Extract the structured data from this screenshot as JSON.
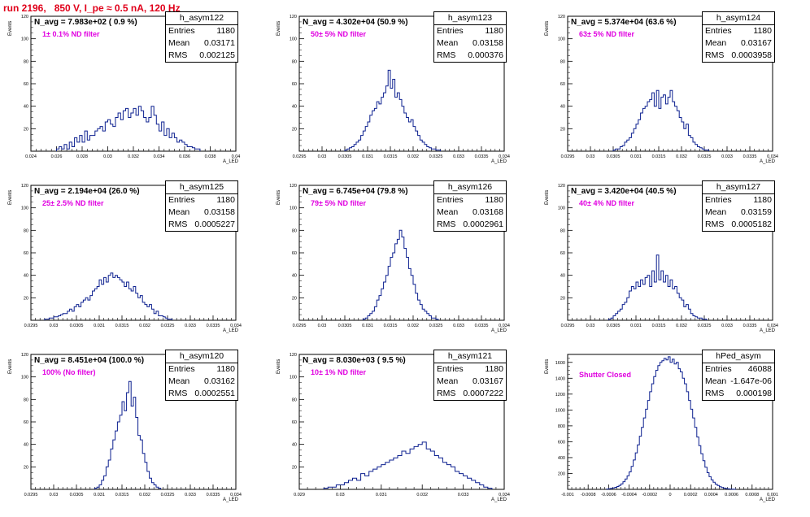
{
  "run_title": "run 2196,   850 V, I_pe ≈ 0.5 nA, 120 Hz",
  "chart_data": [
    {
      "type": "histogram",
      "hist_name": "h_asym122",
      "navg_label": "N_avg = 7.983e+02 ( 0.9 %)",
      "filter_label": "1± 0.1% ND filter",
      "stats": {
        "Entries": "1180",
        "Mean": "0.03171",
        "RMS": "0.002125"
      },
      "xlim": [
        0.024,
        0.04
      ],
      "ylim": [
        0,
        120
      ],
      "xticks": [
        "0.024",
        "0.026",
        "0.028",
        "0.03",
        "0.032",
        "0.034",
        "0.036",
        "0.038",
        "0.04"
      ],
      "yticks": [
        "20",
        "40",
        "60",
        "80",
        "100",
        "120"
      ],
      "xlabel": "A_LED",
      "ylabel": "Events",
      "bins_x": [
        0.026,
        0.0262,
        0.0264,
        0.0266,
        0.0268,
        0.027,
        0.0272,
        0.0274,
        0.0276,
        0.0278,
        0.028,
        0.0282,
        0.0284,
        0.0286,
        0.0288,
        0.029,
        0.0292,
        0.0294,
        0.0296,
        0.0298,
        0.03,
        0.0302,
        0.0304,
        0.0306,
        0.0308,
        0.031,
        0.0312,
        0.0314,
        0.0316,
        0.0318,
        0.032,
        0.0322,
        0.0324,
        0.0326,
        0.0328,
        0.033,
        0.0332,
        0.0334,
        0.0336,
        0.0338,
        0.034,
        0.0342,
        0.0344,
        0.0346,
        0.0348,
        0.035,
        0.0352,
        0.0354,
        0.0356,
        0.0358,
        0.036,
        0.0362,
        0.0364,
        0.0366,
        0.0368,
        0.037
      ],
      "values": [
        2,
        4,
        2,
        6,
        2,
        8,
        4,
        12,
        8,
        14,
        8,
        18,
        10,
        14,
        14,
        18,
        20,
        22,
        18,
        26,
        28,
        24,
        22,
        30,
        34,
        28,
        36,
        38,
        30,
        34,
        38,
        32,
        40,
        36,
        30,
        26,
        30,
        40,
        32,
        24,
        18,
        26,
        14,
        20,
        12,
        16,
        12,
        8,
        10,
        8,
        6,
        4,
        4,
        3,
        2,
        2
      ]
    },
    {
      "type": "histogram",
      "hist_name": "h_asym123",
      "navg_label": "N_avg = 4.302e+04 (50.9 %)",
      "filter_label": "50± 5% ND filter",
      "stats": {
        "Entries": "1180",
        "Mean": "0.03158",
        "RMS": "0.000376"
      },
      "xlim": [
        0.0295,
        0.034
      ],
      "ylim": [
        0,
        120
      ],
      "xticks": [
        "0.0295",
        "0.03",
        "0.0305",
        "0.031",
        "0.0315",
        "0.032",
        "0.0325",
        "0.033",
        "0.0335",
        "0.034"
      ],
      "yticks": [
        "20",
        "40",
        "60",
        "80",
        "100",
        "120"
      ],
      "xlabel": "A_LED",
      "ylabel": "Events",
      "bins_x": [
        0.0305,
        0.03055,
        0.0306,
        0.03065,
        0.0307,
        0.03075,
        0.0308,
        0.03085,
        0.0309,
        0.03095,
        0.031,
        0.03105,
        0.0311,
        0.03115,
        0.0312,
        0.03125,
        0.0313,
        0.03135,
        0.0314,
        0.03145,
        0.0315,
        0.03155,
        0.0316,
        0.03165,
        0.0317,
        0.03175,
        0.0318,
        0.03185,
        0.0319,
        0.03195,
        0.032,
        0.03205,
        0.0321,
        0.03215,
        0.0322,
        0.03225,
        0.0323,
        0.03235,
        0.0324,
        0.03245,
        0.0325,
        0.03255
      ],
      "values": [
        1,
        2,
        3,
        4,
        6,
        8,
        10,
        14,
        18,
        22,
        26,
        32,
        36,
        38,
        44,
        42,
        48,
        52,
        58,
        72,
        56,
        64,
        48,
        52,
        46,
        40,
        34,
        30,
        26,
        28,
        22,
        18,
        14,
        10,
        8,
        6,
        4,
        3,
        2,
        2,
        1,
        1
      ]
    },
    {
      "type": "histogram",
      "hist_name": "h_asym124",
      "navg_label": "N_avg = 5.374e+04 (63.6 %)",
      "filter_label": "63± 5% ND filter",
      "stats": {
        "Entries": "1180",
        "Mean": "0.03167",
        "RMS": "0.0003958"
      },
      "xlim": [
        0.0295,
        0.034
      ],
      "ylim": [
        0,
        120
      ],
      "xticks": [
        "0.0295",
        "0.03",
        "0.0305",
        "0.031",
        "0.0315",
        "0.032",
        "0.0325",
        "0.033",
        "0.0335",
        "0.034"
      ],
      "yticks": [
        "20",
        "40",
        "60",
        "80",
        "100",
        "120"
      ],
      "xlabel": "A_LED",
      "ylabel": "Events",
      "bins_x": [
        0.0305,
        0.03055,
        0.0306,
        0.03065,
        0.0307,
        0.03075,
        0.0308,
        0.03085,
        0.0309,
        0.03095,
        0.031,
        0.03105,
        0.0311,
        0.03115,
        0.0312,
        0.03125,
        0.0313,
        0.03135,
        0.0314,
        0.03145,
        0.0315,
        0.03155,
        0.0316,
        0.03165,
        0.0317,
        0.03175,
        0.0318,
        0.03185,
        0.0319,
        0.03195,
        0.032,
        0.03205,
        0.0321,
        0.03215,
        0.0322,
        0.03225,
        0.0323,
        0.03235,
        0.0324,
        0.03245,
        0.0325,
        0.03255
      ],
      "values": [
        1,
        2,
        2,
        4,
        5,
        8,
        10,
        12,
        16,
        20,
        24,
        28,
        34,
        38,
        40,
        44,
        46,
        52,
        40,
        54,
        38,
        48,
        50,
        42,
        48,
        54,
        44,
        40,
        36,
        30,
        26,
        20,
        24,
        14,
        12,
        8,
        6,
        4,
        3,
        2,
        1,
        1
      ]
    },
    {
      "type": "histogram",
      "hist_name": "h_asym125",
      "navg_label": "N_avg = 2.194e+04 (26.0 %)",
      "filter_label": "25± 2.5% ND filter",
      "stats": {
        "Entries": "1180",
        "Mean": "0.03158",
        "RMS": "0.0005227"
      },
      "xlim": [
        0.0295,
        0.034
      ],
      "ylim": [
        0,
        120
      ],
      "xticks": [
        "0.0295",
        "0.03",
        "0.0305",
        "0.031",
        "0.0315",
        "0.032",
        "0.0325",
        "0.033",
        "0.0335",
        "0.034"
      ],
      "yticks": [
        "20",
        "40",
        "60",
        "80",
        "100",
        "120"
      ],
      "xlabel": "A_LED",
      "ylabel": "Events",
      "bins_x": [
        0.0298,
        0.02985,
        0.0299,
        0.02995,
        0.03,
        0.03005,
        0.0301,
        0.03015,
        0.0302,
        0.03025,
        0.0303,
        0.03035,
        0.0304,
        0.03045,
        0.0305,
        0.03055,
        0.0306,
        0.03065,
        0.0307,
        0.03075,
        0.0308,
        0.03085,
        0.0309,
        0.03095,
        0.031,
        0.03105,
        0.0311,
        0.03115,
        0.0312,
        0.03125,
        0.0313,
        0.03135,
        0.0314,
        0.03145,
        0.0315,
        0.03155,
        0.0316,
        0.03165,
        0.0317,
        0.03175,
        0.0318,
        0.03185,
        0.0319,
        0.03195,
        0.032,
        0.03205,
        0.0321,
        0.03215,
        0.0322,
        0.03225,
        0.0323,
        0.03235,
        0.0324,
        0.03245,
        0.0325,
        0.03255
      ],
      "values": [
        1,
        1,
        2,
        2,
        3,
        3,
        4,
        5,
        6,
        6,
        8,
        10,
        8,
        12,
        14,
        12,
        16,
        18,
        20,
        18,
        22,
        26,
        28,
        30,
        36,
        32,
        38,
        34,
        40,
        42,
        38,
        40,
        38,
        36,
        34,
        30,
        34,
        28,
        26,
        30,
        24,
        20,
        22,
        16,
        14,
        12,
        14,
        10,
        6,
        8,
        4,
        4,
        3,
        2,
        1,
        1
      ]
    },
    {
      "type": "histogram",
      "hist_name": "h_asym126",
      "navg_label": "N_avg = 6.745e+04 (79.8 %)",
      "filter_label": "79± 5% ND filter",
      "stats": {
        "Entries": "1180",
        "Mean": "0.03168",
        "RMS": "0.0002961"
      },
      "xlim": [
        0.0295,
        0.034
      ],
      "ylim": [
        0,
        120
      ],
      "xticks": [
        "0.0295",
        "0.03",
        "0.0305",
        "0.031",
        "0.0315",
        "0.032",
        "0.0325",
        "0.033",
        "0.0335",
        "0.034"
      ],
      "yticks": [
        "20",
        "40",
        "60",
        "80",
        "100",
        "120"
      ],
      "xlabel": "A_LED",
      "ylabel": "Events",
      "bins_x": [
        0.0309,
        0.03095,
        0.031,
        0.03105,
        0.0311,
        0.03115,
        0.0312,
        0.03125,
        0.0313,
        0.03135,
        0.0314,
        0.03145,
        0.0315,
        0.03155,
        0.0316,
        0.03165,
        0.0317,
        0.03175,
        0.0318,
        0.03185,
        0.0319,
        0.03195,
        0.032,
        0.03205,
        0.0321,
        0.03215,
        0.0322,
        0.03225,
        0.0323,
        0.03235,
        0.0324,
        0.03245,
        0.0325
      ],
      "values": [
        1,
        2,
        4,
        6,
        8,
        12,
        18,
        22,
        28,
        34,
        40,
        48,
        56,
        60,
        68,
        72,
        80,
        74,
        64,
        56,
        46,
        40,
        32,
        24,
        18,
        14,
        10,
        8,
        6,
        4,
        2,
        2,
        1
      ]
    },
    {
      "type": "histogram",
      "hist_name": "h_asym127",
      "navg_label": "N_avg = 3.420e+04 (40.5 %)",
      "filter_label": "40± 4% ND filter",
      "stats": {
        "Entries": "1180",
        "Mean": "0.03159",
        "RMS": "0.0005182"
      },
      "xlim": [
        0.0295,
        0.034
      ],
      "ylim": [
        0,
        120
      ],
      "xticks": [
        "0.0295",
        "0.03",
        "0.0305",
        "0.031",
        "0.0315",
        "0.032",
        "0.0325",
        "0.033",
        "0.0335",
        "0.034"
      ],
      "yticks": [
        "20",
        "40",
        "60",
        "80",
        "100",
        "120"
      ],
      "xlabel": "A_LED",
      "ylabel": "Events",
      "bins_x": [
        0.0304,
        0.03045,
        0.0305,
        0.03055,
        0.0306,
        0.03065,
        0.0307,
        0.03075,
        0.0308,
        0.03085,
        0.0309,
        0.03095,
        0.031,
        0.03105,
        0.0311,
        0.03115,
        0.0312,
        0.03125,
        0.0313,
        0.03135,
        0.0314,
        0.03145,
        0.0315,
        0.03155,
        0.0316,
        0.03165,
        0.0317,
        0.03175,
        0.0318,
        0.03185,
        0.0319,
        0.03195,
        0.032,
        0.03205,
        0.0321,
        0.03215,
        0.0322,
        0.03225,
        0.0323,
        0.03235,
        0.0324,
        0.03245,
        0.0325
      ],
      "values": [
        1,
        2,
        4,
        6,
        8,
        10,
        14,
        16,
        20,
        26,
        30,
        28,
        34,
        30,
        36,
        32,
        38,
        40,
        30,
        44,
        34,
        58,
        36,
        44,
        34,
        40,
        30,
        36,
        28,
        30,
        24,
        20,
        18,
        12,
        14,
        10,
        6,
        4,
        3,
        2,
        2,
        1,
        1
      ]
    },
    {
      "type": "histogram",
      "hist_name": "h_asym120",
      "navg_label": "N_avg = 8.451e+04 (100.0 %)",
      "filter_label": "100% (No filter)",
      "stats": {
        "Entries": "1180",
        "Mean": "0.03162",
        "RMS": "0.0002551"
      },
      "xlim": [
        0.0295,
        0.034
      ],
      "ylim": [
        0,
        120
      ],
      "xticks": [
        "0.0295",
        "0.03",
        "0.0305",
        "0.031",
        "0.0315",
        "0.032",
        "0.0325",
        "0.033",
        "0.0335",
        "0.034"
      ],
      "yticks": [
        "20",
        "40",
        "60",
        "80",
        "100",
        "120"
      ],
      "xlabel": "A_LED",
      "ylabel": "Events",
      "bins_x": [
        0.0309,
        0.03095,
        0.031,
        0.03105,
        0.0311,
        0.03115,
        0.0312,
        0.03125,
        0.0313,
        0.03135,
        0.0314,
        0.03145,
        0.0315,
        0.03155,
        0.0316,
        0.03165,
        0.0317,
        0.03175,
        0.0318,
        0.03185,
        0.0319,
        0.03195,
        0.032,
        0.03205,
        0.0321,
        0.03215,
        0.0322,
        0.03225,
        0.0323
      ],
      "values": [
        1,
        2,
        4,
        8,
        12,
        20,
        26,
        36,
        44,
        52,
        60,
        66,
        78,
        70,
        86,
        96,
        74,
        82,
        64,
        48,
        44,
        32,
        24,
        16,
        10,
        6,
        4,
        2,
        1
      ]
    },
    {
      "type": "histogram",
      "hist_name": "h_asym121",
      "navg_label": "N_avg = 8.030e+03 ( 9.5 %)",
      "filter_label": "10± 1% ND filter",
      "stats": {
        "Entries": "1180",
        "Mean": "0.03167",
        "RMS": "0.0007222"
      },
      "xlim": [
        0.029,
        0.034
      ],
      "ylim": [
        0,
        120
      ],
      "xticks": [
        "0.029",
        "0.03",
        "0.031",
        "0.032",
        "0.033",
        "0.034"
      ],
      "yticks": [
        "20",
        "40",
        "60",
        "80",
        "100",
        "120"
      ],
      "xlabel": "A_LED",
      "ylabel": "Events",
      "bins_x": [
        0.0296,
        0.0297,
        0.0298,
        0.0299,
        0.03,
        0.0301,
        0.0302,
        0.0303,
        0.0304,
        0.0305,
        0.0306,
        0.0307,
        0.0308,
        0.0309,
        0.031,
        0.0311,
        0.0312,
        0.0313,
        0.0314,
        0.0315,
        0.0316,
        0.0317,
        0.0318,
        0.0319,
        0.032,
        0.0321,
        0.0322,
        0.0323,
        0.0324,
        0.0325,
        0.0326,
        0.0327,
        0.0328,
        0.0329,
        0.033,
        0.0331,
        0.0332,
        0.0333,
        0.0334,
        0.0335,
        0.0336
      ],
      "values": [
        1,
        2,
        2,
        4,
        4,
        6,
        8,
        10,
        8,
        14,
        12,
        16,
        18,
        20,
        22,
        24,
        26,
        28,
        30,
        34,
        32,
        36,
        38,
        40,
        42,
        36,
        34,
        30,
        28,
        24,
        22,
        20,
        16,
        14,
        12,
        10,
        8,
        6,
        4,
        2,
        1
      ]
    },
    {
      "type": "histogram",
      "hist_name": "hPed_asym",
      "navg_label": "",
      "filter_label": "Shutter Closed",
      "stats": {
        "Entries": "46088",
        "Mean": "-1.647e-06",
        "RMS": "0.000198"
      },
      "xlim": [
        -0.001,
        0.001
      ],
      "ylim": [
        0,
        1700
      ],
      "xticks": [
        "-0.001",
        "-0.0008",
        "-0.0006",
        "-0.0004",
        "-0.0002",
        "0",
        "0.0002",
        "0.0004",
        "0.0006",
        "0.0008",
        "0.001"
      ],
      "yticks": [
        "200",
        "400",
        "600",
        "800",
        "1000",
        "1200",
        "1400",
        "1600"
      ],
      "xlabel": "A_LED",
      "ylabel": "Events",
      "bins_x": [
        -0.00062,
        -0.0006,
        -0.00058,
        -0.00056,
        -0.00054,
        -0.00052,
        -0.0005,
        -0.00048,
        -0.00046,
        -0.00044,
        -0.00042,
        -0.0004,
        -0.00038,
        -0.00036,
        -0.00034,
        -0.00032,
        -0.0003,
        -0.00028,
        -0.00026,
        -0.00024,
        -0.00022,
        -0.0002,
        -0.00018,
        -0.00016,
        -0.00014,
        -0.00012,
        -0.0001,
        -8e-05,
        -6e-05,
        -4e-05,
        -2e-05,
        0.0,
        2e-05,
        4e-05,
        6e-05,
        8e-05,
        0.0001,
        0.00012,
        0.00014,
        0.00016,
        0.00018,
        0.0002,
        0.00022,
        0.00024,
        0.00026,
        0.00028,
        0.0003,
        0.00032,
        0.00034,
        0.00036,
        0.00038,
        0.0004,
        0.00042,
        0.00044,
        0.00046,
        0.00048,
        0.0005,
        0.00052,
        0.00054,
        0.00056,
        0.00058,
        0.0006,
        0.00062
      ],
      "values": [
        4,
        8,
        12,
        18,
        26,
        36,
        50,
        70,
        96,
        130,
        170,
        220,
        290,
        370,
        460,
        560,
        670,
        780,
        900,
        1010,
        1120,
        1230,
        1330,
        1420,
        1500,
        1560,
        1600,
        1620,
        1650,
        1630,
        1670,
        1600,
        1640,
        1580,
        1600,
        1520,
        1480,
        1400,
        1330,
        1230,
        1120,
        1010,
        900,
        780,
        660,
        550,
        450,
        360,
        280,
        210,
        160,
        120,
        90,
        66,
        48,
        34,
        24,
        16,
        10,
        6,
        4,
        2,
        1
      ]
    }
  ]
}
